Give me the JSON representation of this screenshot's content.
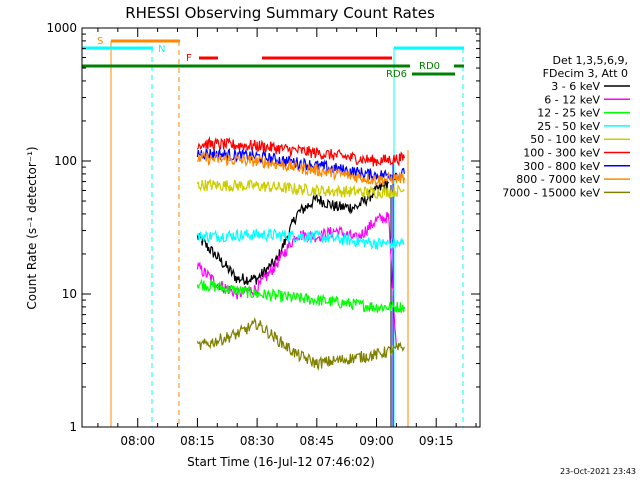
{
  "chart_data": {
    "type": "line",
    "title": "RHESSI Observing Summary Count Rates",
    "xlabel": "Start Time (16-Jul-12 07:46:02)",
    "ylabel": "Count Rate (s⁻¹ detector⁻¹)",
    "y_scale": "log",
    "ylim": [
      1,
      1000
    ],
    "xlim": [
      "07:46",
      "09:26"
    ],
    "x_ticks": [
      "08:00",
      "08:15",
      "08:30",
      "08:45",
      "09:00",
      "09:15"
    ],
    "y_ticks": [
      "1",
      "10",
      "100",
      "1000"
    ],
    "timestamp": "23-Oct-2021 23:43",
    "legend": {
      "header": [
        "Det 1,3,5,6,9,",
        "FDecim 3, Att 0"
      ],
      "placement": "right"
    },
    "series": [
      {
        "name": "3 - 6 keV",
        "color": "#000000",
        "x": [
          "08:15",
          "08:20",
          "08:25",
          "08:30",
          "08:35",
          "08:40",
          "08:45",
          "08:50",
          "08:55",
          "09:00",
          "09:03"
        ],
        "y": [
          27,
          19,
          13,
          13,
          18,
          40,
          52,
          45,
          45,
          60,
          68
        ]
      },
      {
        "name": "6 - 12 keV",
        "color": "#ff00ff",
        "x": [
          "08:15",
          "08:20",
          "08:25",
          "08:30",
          "08:35",
          "08:40",
          "08:45",
          "08:50",
          "08:55",
          "09:00",
          "09:03",
          "09:05"
        ],
        "y": [
          16,
          12,
          10,
          11,
          17,
          28,
          27,
          30,
          26,
          36,
          38,
          4
        ]
      },
      {
        "name": "12 - 25 keV",
        "color": "#00ff00",
        "x": [
          "08:15",
          "08:30",
          "08:45",
          "09:00",
          "09:07"
        ],
        "y": [
          12,
          10,
          9,
          8,
          8
        ]
      },
      {
        "name": "25 - 50 keV",
        "color": "#00ffff",
        "x": [
          "08:15",
          "08:30",
          "08:45",
          "09:00",
          "09:07"
        ],
        "y": [
          27,
          28,
          27,
          24,
          24
        ]
      },
      {
        "name": "50 - 100 keV",
        "color": "#cccc00",
        "x": [
          "08:15",
          "08:30",
          "08:45",
          "09:00",
          "09:07"
        ],
        "y": [
          66,
          65,
          60,
          58,
          60
        ]
      },
      {
        "name": "100 - 300 keV",
        "color": "#ff0000",
        "x": [
          "08:15",
          "08:30",
          "08:45",
          "09:00",
          "09:07"
        ],
        "y": [
          135,
          130,
          115,
          100,
          105
        ]
      },
      {
        "name": "300 - 800 keV",
        "color": "#0000ff",
        "x": [
          "08:15",
          "08:30",
          "08:45",
          "09:00",
          "09:07"
        ],
        "y": [
          115,
          108,
          92,
          78,
          80
        ]
      },
      {
        "name": "800 - 7000 keV",
        "color": "#ff8800",
        "x": [
          "08:15",
          "08:30",
          "08:45",
          "09:00",
          "09:07"
        ],
        "y": [
          105,
          100,
          85,
          72,
          75
        ]
      },
      {
        "name": "7000 - 15000 keV",
        "color": "#808000",
        "x": [
          "08:15",
          "08:25",
          "08:30",
          "08:40",
          "08:45",
          "09:00",
          "09:07"
        ],
        "y": [
          4,
          5,
          6,
          3.5,
          3,
          3.5,
          4
        ]
      }
    ],
    "flags": [
      {
        "label": "S",
        "color": "#ff8800"
      },
      {
        "label": "N",
        "color": "#00ffff"
      },
      {
        "label": "F",
        "color": "#ff0000"
      },
      {
        "label": "RD0",
        "color": "#008000"
      },
      {
        "label": "RD6",
        "color": "#008000"
      }
    ]
  }
}
